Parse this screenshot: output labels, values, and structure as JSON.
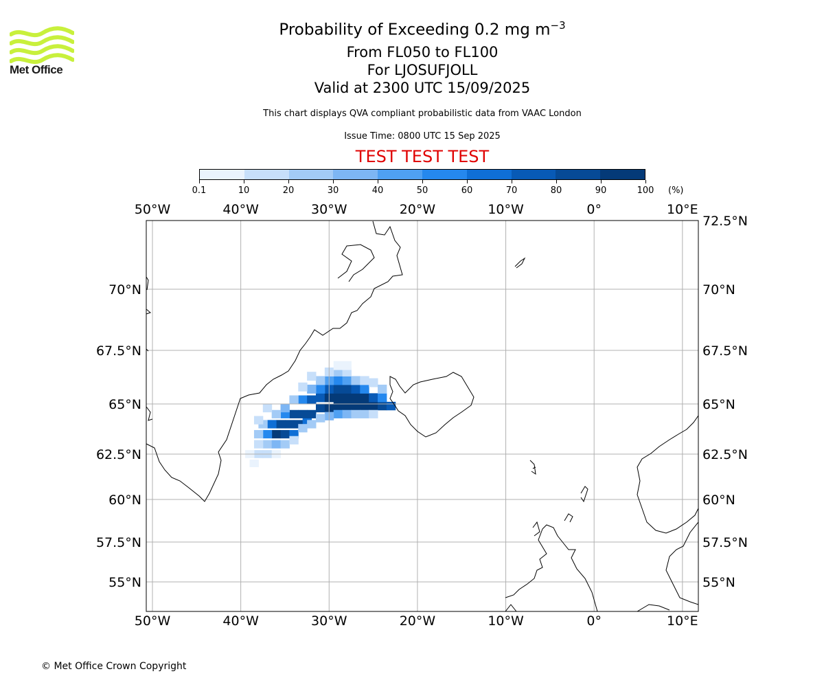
{
  "logo": {
    "text": "Met Office",
    "brand_color": "#c8f03c"
  },
  "header": {
    "title_main": "Probability of Exceeding 0.2 mg m",
    "title_exp": "−3",
    "line2": "From FL050 to FL100",
    "line3": "For LJOSUFJOLL",
    "line4": "Valid at 2300 UTC 15/09/2025",
    "subtitle": "This chart displays QVA compliant probabilistic data from VAAC London",
    "issue_time": "Issue Time: 0800 UTC 15 Sep 2025",
    "test_banner": "TEST TEST TEST",
    "test_color": "#e00000"
  },
  "colorbar": {
    "labels": [
      "0.1",
      "10",
      "20",
      "30",
      "40",
      "50",
      "60",
      "70",
      "80",
      "90",
      "100"
    ],
    "unit": "(%)",
    "colors": [
      "#eaf3fd",
      "#c7dffa",
      "#a3cbf6",
      "#7db6f4",
      "#4fa0f2",
      "#2588ee",
      "#0f6fd6",
      "#085ab6",
      "#064a96",
      "#043a78",
      "#022a55"
    ]
  },
  "map": {
    "lon_labels": [
      "50°W",
      "40°W",
      "30°W",
      "20°W",
      "10°W",
      "0°",
      "10°E"
    ],
    "lon_values": [
      -50,
      -40,
      -30,
      -20,
      -10,
      0,
      10
    ],
    "lat_labels_left": [
      "70°N",
      "67.5°N",
      "65°N",
      "62.5°N",
      "60°N",
      "57.5°N",
      "55°N"
    ],
    "lat_labels_right": [
      "72.5°N",
      "70°N",
      "67.5°N",
      "65°N",
      "62.5°N",
      "60°N",
      "57.5°N",
      "55°N"
    ],
    "lat_values_left": [
      70,
      67.5,
      65,
      62.5,
      60,
      57.5,
      55
    ],
    "lat_values_right": [
      72.5,
      70,
      67.5,
      65,
      62.5,
      60,
      57.5,
      55
    ],
    "lon_range": [
      -50.7,
      11.8
    ],
    "lat_range": [
      53.9,
      72.5
    ],
    "grid": true,
    "plume_cells": [
      [
        -36,
        63.5,
        90
      ],
      [
        -35,
        63.5,
        80
      ],
      [
        -37,
        63.5,
        50
      ],
      [
        -34,
        63.5,
        60
      ],
      [
        -38,
        63.5,
        20
      ],
      [
        -35.5,
        64,
        85
      ],
      [
        -34.5,
        64,
        85
      ],
      [
        -36.5,
        64,
        60
      ],
      [
        -33.5,
        64,
        80
      ],
      [
        -37.5,
        64,
        25
      ],
      [
        -32.5,
        64.2,
        60
      ],
      [
        -34,
        64.5,
        80
      ],
      [
        -33,
        64.5,
        85
      ],
      [
        -32,
        64.5,
        80
      ],
      [
        -35,
        64.5,
        55
      ],
      [
        -31,
        64.8,
        80
      ],
      [
        -30,
        64.8,
        90
      ],
      [
        -29,
        64.9,
        95
      ],
      [
        -28,
        64.9,
        95
      ],
      [
        -27,
        64.9,
        95
      ],
      [
        -26,
        64.9,
        95
      ],
      [
        -25,
        64.9,
        90
      ],
      [
        -24,
        64.9,
        85
      ],
      [
        -23,
        64.9,
        70
      ],
      [
        -31,
        65.3,
        75
      ],
      [
        -30,
        65.3,
        90
      ],
      [
        -29,
        65.3,
        95
      ],
      [
        -28,
        65.3,
        95
      ],
      [
        -27,
        65.3,
        95
      ],
      [
        -26,
        65.3,
        90
      ],
      [
        -25,
        65.3,
        70
      ],
      [
        -24,
        65.3,
        50
      ],
      [
        -33,
        65.2,
        55
      ],
      [
        -32,
        65.2,
        70
      ],
      [
        -30,
        65.7,
        70
      ],
      [
        -29,
        65.7,
        85
      ],
      [
        -28,
        65.7,
        85
      ],
      [
        -27,
        65.7,
        75
      ],
      [
        -26,
        65.7,
        50
      ],
      [
        -31,
        65.7,
        50
      ],
      [
        -32,
        65.7,
        30
      ],
      [
        -29,
        66.1,
        50
      ],
      [
        -28,
        66.1,
        45
      ],
      [
        -30,
        66.1,
        40
      ],
      [
        -27,
        66.1,
        25
      ],
      [
        -31,
        66.1,
        25
      ],
      [
        -29,
        66.5,
        20
      ],
      [
        -28,
        66.5,
        15
      ],
      [
        -30,
        66.5,
        15
      ],
      [
        -33,
        65.8,
        15
      ],
      [
        -34,
        65.2,
        25
      ],
      [
        -35,
        64.8,
        30
      ],
      [
        -36,
        64.5,
        25
      ],
      [
        -37,
        64.8,
        15
      ],
      [
        -38,
        64.2,
        10
      ],
      [
        -37,
        63,
        25
      ],
      [
        -36,
        63,
        30
      ],
      [
        -35,
        63,
        20
      ],
      [
        -38,
        63,
        15
      ],
      [
        -38,
        62.5,
        10
      ],
      [
        -37,
        62.5,
        10
      ],
      [
        -36,
        62.5,
        8
      ],
      [
        -39,
        62.5,
        5
      ],
      [
        -38.5,
        62,
        5
      ],
      [
        -34,
        63.2,
        15
      ],
      [
        -33,
        63.8,
        20
      ],
      [
        -32,
        64,
        25
      ],
      [
        -29,
        64.5,
        40
      ],
      [
        -28,
        64.5,
        30
      ],
      [
        -27,
        64.5,
        25
      ],
      [
        -26,
        64.5,
        20
      ],
      [
        -25,
        64.5,
        15
      ],
      [
        -30,
        64.4,
        35
      ],
      [
        -31,
        64.3,
        25
      ],
      [
        -25,
        66,
        15
      ],
      [
        -26,
        66.1,
        10
      ],
      [
        -24,
        65.7,
        20
      ],
      [
        -32,
        66.3,
        10
      ],
      [
        -29,
        66.8,
        5
      ],
      [
        -28,
        66.8,
        5
      ]
    ]
  },
  "footer": {
    "copyright": "© Met Office Crown Copyright"
  }
}
